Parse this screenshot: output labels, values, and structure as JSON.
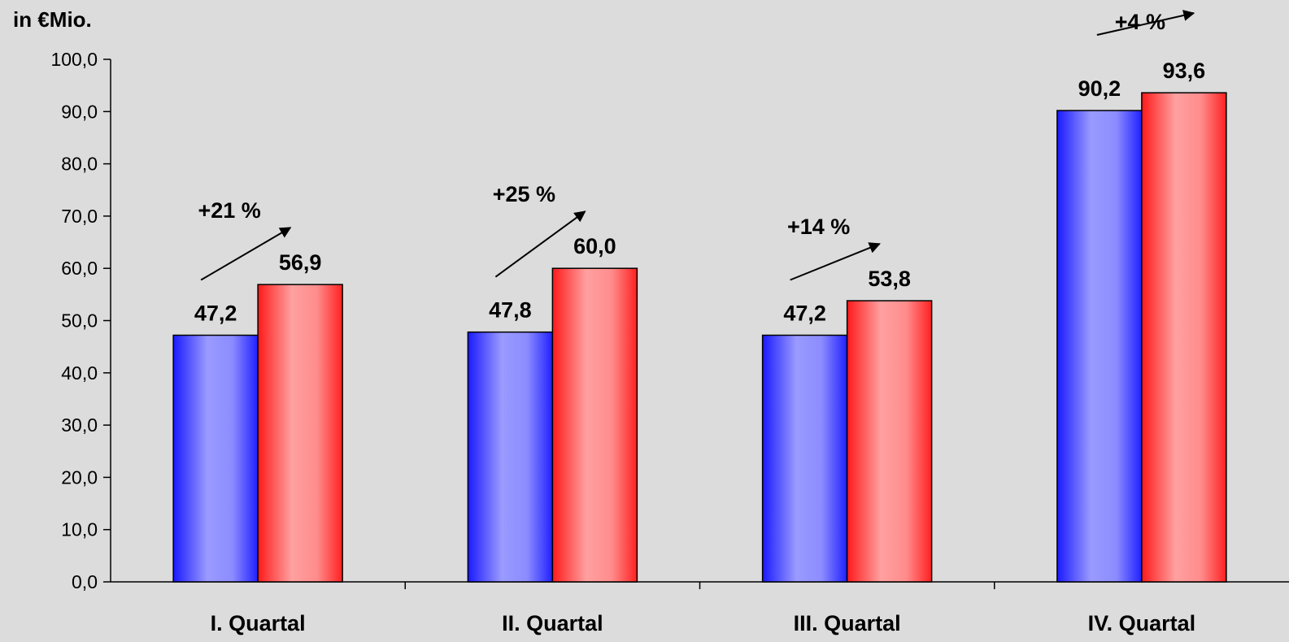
{
  "chart_data": {
    "type": "bar",
    "ylabel": "in €Mio.",
    "categories": [
      "I. Quartal",
      "II. Quartal",
      "III. Quartal",
      "IV. Quartal"
    ],
    "series": [
      {
        "values": [
          47.2,
          47.8,
          47.2,
          90.2
        ],
        "color": "#3333ff"
      },
      {
        "values": [
          56.9,
          60.0,
          53.8,
          93.6
        ],
        "color": "#ff3333"
      }
    ],
    "data_labels": [
      [
        "47,2",
        "47,8",
        "47,2",
        "90,2"
      ],
      [
        "56,9",
        "60,0",
        "53,8",
        "93,6"
      ]
    ],
    "annotations": [
      "+21 %",
      "+25 %",
      "+14 %",
      "+4 %"
    ],
    "ylim": [
      0,
      100
    ],
    "yticks": [
      0,
      10,
      20,
      30,
      40,
      50,
      60,
      70,
      80,
      90,
      100
    ],
    "ytick_labels": [
      "0,0",
      "10,0",
      "20,0",
      "30,0",
      "40,0",
      "50,0",
      "60,0",
      "70,0",
      "80,0",
      "90,0",
      "100,0"
    ],
    "grid": false,
    "legend": false
  }
}
